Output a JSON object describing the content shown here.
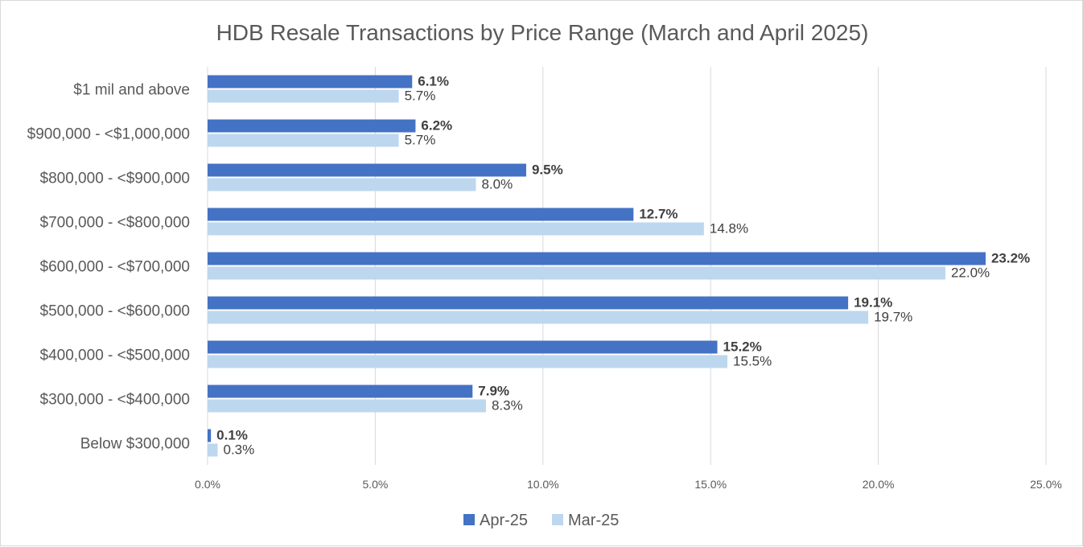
{
  "chart_data": {
    "type": "bar",
    "orientation": "horizontal",
    "title": "HDB Resale Transactions by Price Range (March and April 2025)",
    "categories": [
      "$1 mil and above",
      "$900,000 - <$1,000,000",
      "$800,000 - <$900,000",
      "$700,000 - <$800,000",
      "$600,000 - <$700,000",
      "$500,000 - <$600,000",
      "$400,000 - <$500,000",
      "$300,000 - <$400,000",
      "Below $300,000"
    ],
    "series": [
      {
        "name": "Apr-25",
        "color": "#4472c4",
        "values": [
          6.1,
          6.2,
          9.5,
          12.7,
          23.2,
          19.1,
          15.2,
          7.9,
          0.1
        ],
        "labels": [
          "6.1%",
          "6.2%",
          "9.5%",
          "12.7%",
          "23.2%",
          "19.1%",
          "15.2%",
          "7.9%",
          "0.1%"
        ]
      },
      {
        "name": "Mar-25",
        "color": "#bdd7ee",
        "values": [
          5.7,
          5.7,
          8.0,
          14.8,
          22.0,
          19.7,
          15.5,
          8.3,
          0.3
        ],
        "labels": [
          "5.7%",
          "5.7%",
          "8.0%",
          "14.8%",
          "22.0%",
          "19.7%",
          "15.5%",
          "8.3%",
          "0.3%"
        ]
      }
    ],
    "xlim": [
      0,
      25
    ],
    "xticks": [
      0,
      5,
      10,
      15,
      20,
      25
    ],
    "xtick_labels": [
      "0.0%",
      "5.0%",
      "10.0%",
      "15.0%",
      "20.0%",
      "25.0%"
    ],
    "grid": "vertical",
    "gridline_color": "#d9d9d9",
    "legend_position": "bottom"
  }
}
